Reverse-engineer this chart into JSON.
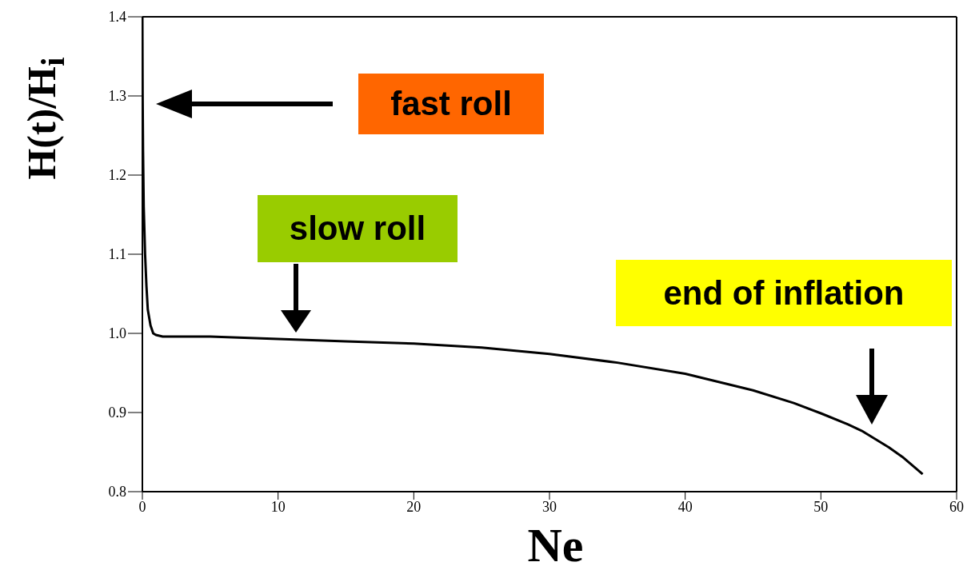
{
  "chart_data": {
    "type": "line",
    "xlabel": "Ne",
    "ylabel": "H(t)/H$_{i}$",
    "x": [
      0,
      0.02,
      0.05,
      0.1,
      0.2,
      0.3,
      0.4,
      0.6,
      0.8,
      1.0,
      1.5,
      5,
      10,
      15,
      20,
      25,
      30,
      35,
      40,
      45,
      48,
      50,
      52,
      53,
      55,
      56,
      57.5
    ],
    "series": [
      {
        "color": "#000000",
        "values": [
          1.4,
          1.3,
          1.23,
          1.16,
          1.1,
          1.06,
          1.03,
          1.01,
          1.0,
          0.998,
          0.996,
          0.996,
          0.993,
          0.99,
          0.987,
          0.982,
          0.974,
          0.963,
          0.949,
          0.928,
          0.912,
          0.899,
          0.885,
          0.877,
          0.856,
          0.844,
          0.822
        ]
      }
    ],
    "xlim": [
      0,
      60
    ],
    "xticks": [
      0,
      10,
      20,
      30,
      40,
      50,
      60
    ],
    "ylim": [
      0.8,
      1.4
    ],
    "yticks": [
      {
        "value": 0.8,
        "label": "0.8"
      },
      {
        "value": 0.9,
        "label": "0.9"
      },
      {
        "value": 1,
        "label": "1.0"
      },
      {
        "value": 1.1,
        "label": "1.1"
      },
      {
        "value": 1.2,
        "label": "1.2"
      },
      {
        "value": 1.3,
        "label": "1.3"
      },
      {
        "value": 1.4,
        "label": "1.4"
      }
    ],
    "grid": false,
    "legend": false,
    "marker": "none",
    "line_style": "solid",
    "annotations": [
      "fast roll",
      "slow roll",
      "end of inflation"
    ]
  }
}
